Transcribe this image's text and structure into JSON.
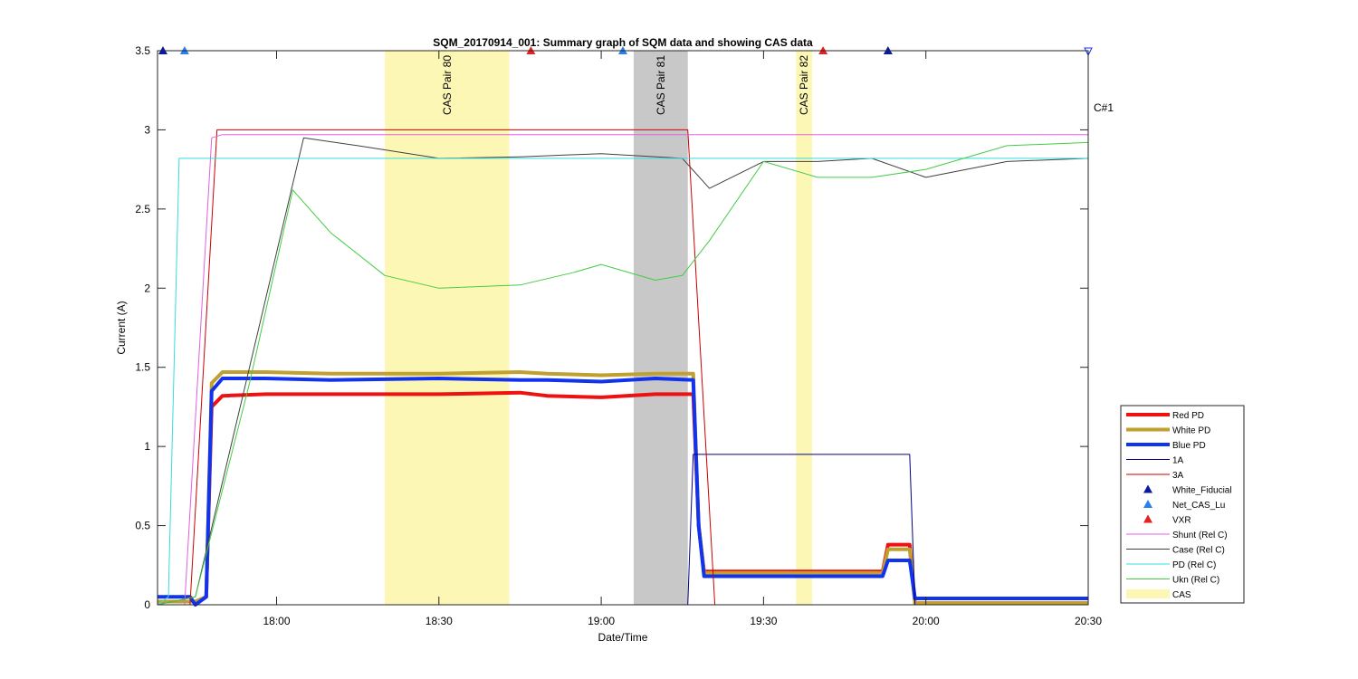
{
  "chart_data": {
    "type": "line",
    "title": "SQM_20170914_001: Summary graph of SQM data and showing CAS data",
    "xlabel": "Date/Time",
    "ylabel": "Current (A)",
    "xlim": [
      "17:38",
      "20:30"
    ],
    "ylim": [
      0,
      3.5
    ],
    "x_ticks": [
      "18:00",
      "18:30",
      "19:00",
      "19:30",
      "20:00",
      "20:30"
    ],
    "y_ticks": [
      "0",
      "0.5",
      "1",
      "1.5",
      "2",
      "2.5",
      "3",
      "3.5"
    ],
    "grid": false,
    "legend_position": "bottom-right",
    "cas_bands": [
      {
        "label": "CAS Pair 80",
        "start": "18:20",
        "end": "18:43",
        "color": "#fdf7b6"
      },
      {
        "label": "CAS Pair 81",
        "start": "19:06",
        "end": "19:16",
        "color": "#c8c8c8"
      },
      {
        "label": "CAS Pair 82",
        "start": "19:36",
        "end": "19:39",
        "color": "#fdf7b6"
      }
    ],
    "corner_label": "C#1",
    "series": [
      {
        "name": "Red PD",
        "color": "#ee1111",
        "width": 4,
        "x": [
          "17:38",
          "17:45",
          "17:47",
          "17:48",
          "17:50",
          "17:58",
          "18:10",
          "18:30",
          "18:45",
          "18:50",
          "19:00",
          "19:10",
          "19:17",
          "19:18",
          "19:19",
          "19:22",
          "19:40",
          "19:52",
          "19:53",
          "19:57",
          "19:58",
          "20:30"
        ],
        "y": [
          0.02,
          0.02,
          0.05,
          1.25,
          1.32,
          1.33,
          1.33,
          1.33,
          1.34,
          1.32,
          1.31,
          1.33,
          1.33,
          0.5,
          0.21,
          0.21,
          0.21,
          0.21,
          0.38,
          0.38,
          0.01,
          0.01
        ]
      },
      {
        "name": "White PD",
        "color": "#c0a030",
        "width": 4,
        "x": [
          "17:38",
          "17:45",
          "17:47",
          "17:48",
          "17:50",
          "17:58",
          "18:10",
          "18:30",
          "18:45",
          "18:50",
          "19:00",
          "19:10",
          "19:17",
          "19:18",
          "19:19",
          "19:22",
          "19:40",
          "19:52",
          "19:53",
          "19:57",
          "19:58",
          "20:30"
        ],
        "y": [
          0.02,
          0.02,
          0.05,
          1.4,
          1.47,
          1.47,
          1.46,
          1.46,
          1.47,
          1.46,
          1.45,
          1.46,
          1.46,
          0.5,
          0.2,
          0.2,
          0.2,
          0.2,
          0.35,
          0.35,
          0.01,
          0.01
        ]
      },
      {
        "name": "Blue PD",
        "color": "#1133ee",
        "width": 4,
        "x": [
          "17:38",
          "17:44",
          "17:45",
          "17:47",
          "17:48",
          "17:50",
          "17:58",
          "18:10",
          "18:30",
          "18:45",
          "18:50",
          "19:00",
          "19:10",
          "19:17",
          "19:18",
          "19:19",
          "19:22",
          "19:40",
          "19:52",
          "19:53",
          "19:57",
          "19:58",
          "20:30"
        ],
        "y": [
          0.05,
          0.05,
          0.0,
          0.05,
          1.35,
          1.43,
          1.43,
          1.42,
          1.43,
          1.42,
          1.42,
          1.41,
          1.43,
          1.42,
          0.5,
          0.18,
          0.18,
          0.18,
          0.18,
          0.28,
          0.28,
          0.04,
          0.04
        ]
      },
      {
        "name": "1A",
        "color": "#000080",
        "width": 1,
        "x": [
          "17:38",
          "19:16",
          "19:17",
          "19:57",
          "19:58",
          "20:30"
        ],
        "y": [
          0,
          0,
          0.95,
          0.95,
          0,
          0
        ]
      },
      {
        "name": "3A",
        "color": "#cc0000",
        "width": 1,
        "x": [
          "17:38",
          "17:44",
          "17:49",
          "19:16",
          "19:21",
          "20:30"
        ],
        "y": [
          0,
          0,
          3.0,
          3.0,
          0,
          0
        ]
      },
      {
        "name": "Shunt (Rel C)",
        "color": "#e060e0",
        "width": 1,
        "x": [
          "17:38",
          "17:43",
          "17:48",
          "17:50",
          "18:30",
          "19:00",
          "19:30",
          "20:00",
          "20:30"
        ],
        "y": [
          0,
          0,
          2.95,
          2.97,
          2.97,
          2.97,
          2.97,
          2.97,
          2.97
        ]
      },
      {
        "name": "Case (Rel C)",
        "color": "#404040",
        "width": 1,
        "x": [
          "17:38",
          "17:45",
          "17:55",
          "18:05",
          "18:15",
          "18:30",
          "18:45",
          "19:00",
          "19:15",
          "19:20",
          "19:30",
          "19:40",
          "19:50",
          "20:00",
          "20:15",
          "20:30"
        ],
        "y": [
          0,
          0.05,
          1.5,
          2.95,
          2.9,
          2.82,
          2.83,
          2.85,
          2.82,
          2.63,
          2.8,
          2.8,
          2.82,
          2.7,
          2.8,
          2.82
        ]
      },
      {
        "name": "PD (Rel C)",
        "color": "#33dddd",
        "width": 1,
        "x": [
          "17:38",
          "17:40",
          "17:42",
          "17:50",
          "18:00",
          "18:30",
          "19:00",
          "19:30",
          "20:00",
          "20:30"
        ],
        "y": [
          0,
          0.05,
          2.82,
          2.82,
          2.82,
          2.82,
          2.82,
          2.82,
          2.82,
          2.82
        ]
      },
      {
        "name": "Ukn (Rel C)",
        "color": "#44cc44",
        "width": 1,
        "x": [
          "17:38",
          "17:45",
          "17:55",
          "18:03",
          "18:10",
          "18:20",
          "18:30",
          "18:45",
          "18:55",
          "19:00",
          "19:10",
          "19:15",
          "19:20",
          "19:30",
          "19:40",
          "19:50",
          "20:00",
          "20:15",
          "20:30"
        ],
        "y": [
          0,
          0.05,
          1.4,
          2.62,
          2.35,
          2.08,
          2.0,
          2.02,
          2.1,
          2.15,
          2.05,
          2.08,
          2.3,
          2.8,
          2.7,
          2.7,
          2.75,
          2.9,
          2.92
        ]
      }
    ],
    "markers": [
      {
        "name": "White_Fiducial",
        "symbol": "triangle-up",
        "color": "#0a1aa0",
        "x": [
          "17:39",
          "19:53"
        ],
        "y": [
          3.5,
          3.5
        ]
      },
      {
        "name": "Net_CAS_Lu",
        "symbol": "triangle-up",
        "color": "#2a7ff0",
        "x": [
          "17:43",
          "19:04"
        ],
        "y": [
          3.5,
          3.5
        ]
      },
      {
        "name": "VXR",
        "symbol": "triangle-up",
        "color": "#e82020",
        "x": [
          "18:47",
          "19:41"
        ],
        "y": [
          3.5,
          3.5
        ]
      }
    ],
    "legend_extra": {
      "name": "CAS",
      "color": "#fdf7b6"
    }
  }
}
